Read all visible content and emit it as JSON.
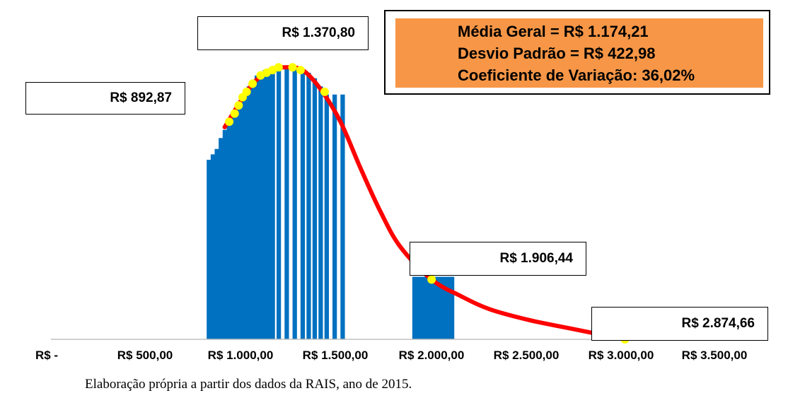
{
  "chart_data": {
    "type": "area",
    "title": "",
    "xlabel": "",
    "ylabel": "",
    "xlim": [
      0,
      3500
    ],
    "x_ticks": [
      {
        "value": 0,
        "label": "R$ -"
      },
      {
        "value": 500,
        "label": "R$ 500,00"
      },
      {
        "value": 1000,
        "label": "R$ 1.000,00"
      },
      {
        "value": 1500,
        "label": "R$ 1.500,00"
      },
      {
        "value": 2000,
        "label": "R$ 2.000,00"
      },
      {
        "value": 2500,
        "label": "R$ 2.500,00"
      },
      {
        "value": 3000,
        "label": "R$ 3.000,00"
      },
      {
        "value": 3500,
        "label": "R$ 3.500,00"
      }
    ],
    "bar_color": "#0070C0",
    "curve_color": "#FF0000",
    "point_color": "#FFFF00",
    "histogram": [
      {
        "x": 790,
        "y": 0.00066
      },
      {
        "x": 810,
        "y": 0.00068
      },
      {
        "x": 830,
        "y": 0.0007
      },
      {
        "x": 850,
        "y": 0.00074
      },
      {
        "x": 870,
        "y": 0.00077
      },
      {
        "x": 890,
        "y": 0.0008
      },
      {
        "x": 910,
        "y": 0.00082
      },
      {
        "x": 930,
        "y": 0.00085
      },
      {
        "x": 950,
        "y": 0.00088
      },
      {
        "x": 970,
        "y": 0.0009
      },
      {
        "x": 990,
        "y": 0.00093
      },
      {
        "x": 1010,
        "y": 0.00095
      },
      {
        "x": 1030,
        "y": 0.00097
      },
      {
        "x": 1050,
        "y": 0.00098
      },
      {
        "x": 1070,
        "y": 0.00099
      },
      {
        "x": 1090,
        "y": 0.000995
      },
      {
        "x": 1110,
        "y": 0.000998
      },
      {
        "x": 1140,
        "y": 0.001
      },
      {
        "x": 1180,
        "y": 0.001
      },
      {
        "x": 1220,
        "y": 0.001
      },
      {
        "x": 1260,
        "y": 0.00099
      },
      {
        "x": 1290,
        "y": 0.00098
      },
      {
        "x": 1320,
        "y": 0.00096
      },
      {
        "x": 1350,
        "y": 0.00093
      },
      {
        "x": 1380,
        "y": 0.0009
      },
      {
        "x": 1420,
        "y": 0.0009
      },
      {
        "x": 1460,
        "y": 0.0009
      },
      {
        "x": 1820,
        "y": 0.00023
      },
      {
        "x": 1880,
        "y": 0.00023
      },
      {
        "x": 1940,
        "y": 0.00023
      },
      {
        "x": 1990,
        "y": 0.00023
      }
    ],
    "histogram_bin_width": 20,
    "histogram_wide_bins": [
      {
        "from": 1810,
        "to": 2020,
        "y": 0.00023
      }
    ],
    "curve": [
      {
        "x": 0,
        "y": 0
      },
      {
        "x": 870,
        "y": 0.00078
      },
      {
        "x": 1000,
        "y": 0.00093
      },
      {
        "x": 1100,
        "y": 0.00099
      },
      {
        "x": 1174.21,
        "y": 0.001
      },
      {
        "x": 1260,
        "y": 0.00099
      },
      {
        "x": 1350,
        "y": 0.00092
      },
      {
        "x": 1450,
        "y": 0.0008
      },
      {
        "x": 1550,
        "y": 0.00063
      },
      {
        "x": 1650,
        "y": 0.00047
      },
      {
        "x": 1750,
        "y": 0.00034
      },
      {
        "x": 1906.44,
        "y": 0.00022
      },
      {
        "x": 2050,
        "y": 0.00016
      },
      {
        "x": 2200,
        "y": 0.00011
      },
      {
        "x": 2400,
        "y": 7e-05
      },
      {
        "x": 2600,
        "y": 4e-05
      },
      {
        "x": 2874.66,
        "y": 0.0
      }
    ],
    "points": [
      {
        "x": 892.87,
        "y": 0.0008
      },
      {
        "x": 920,
        "y": 0.00083
      },
      {
        "x": 940,
        "y": 0.00086
      },
      {
        "x": 960,
        "y": 0.00089
      },
      {
        "x": 980,
        "y": 0.00091
      },
      {
        "x": 1010,
        "y": 0.00094
      },
      {
        "x": 1050,
        "y": 0.00097
      },
      {
        "x": 1080,
        "y": 0.00098
      },
      {
        "x": 1110,
        "y": 0.00099
      },
      {
        "x": 1140,
        "y": 0.001
      },
      {
        "x": 1210,
        "y": 0.001
      },
      {
        "x": 1250,
        "y": 0.00099
      },
      {
        "x": 1370.8,
        "y": 0.00091
      },
      {
        "x": 1906.44,
        "y": 0.00022
      },
      {
        "x": 2874.66,
        "y": 0.0
      }
    ],
    "ylim": [
      0,
      0.00105
    ],
    "annotations": [
      {
        "label": "R$ 892,87",
        "value": 892.87
      },
      {
        "label": "R$ 1.370,80",
        "value": 1370.8
      },
      {
        "label": "R$ 1.906,44",
        "value": 1906.44
      },
      {
        "label": "R$ 2.874,66",
        "value": 2874.66
      }
    ],
    "stats": {
      "mean": "Média Geral = R$ 1.174,21",
      "sd": "Desvio Padrão = R$ 422,98",
      "cv": "Coeficiente de Variação: 36,02%"
    },
    "stats_bg_color": "#F79646",
    "grid": false,
    "legend": "none"
  },
  "caption": "Elaboração própria a partir dos dados da RAIS, ano de 2015."
}
